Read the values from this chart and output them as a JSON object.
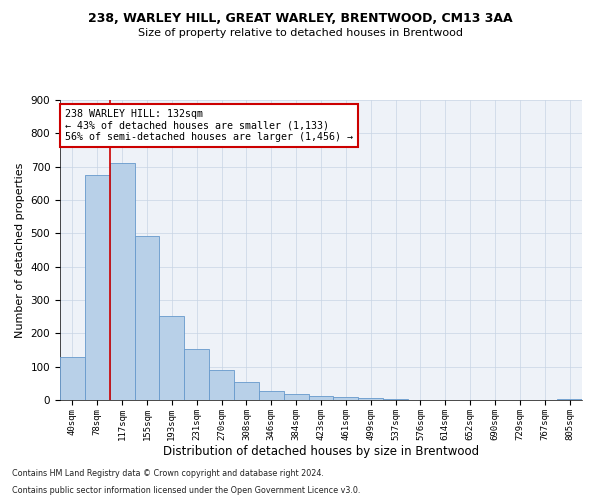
{
  "title1": "238, WARLEY HILL, GREAT WARLEY, BRENTWOOD, CM13 3AA",
  "title2": "Size of property relative to detached houses in Brentwood",
  "xlabel": "Distribution of detached houses by size in Brentwood",
  "ylabel": "Number of detached properties",
  "bar_color": "#b8d0e8",
  "bar_edge_color": "#6699cc",
  "bin_labels": [
    "40sqm",
    "78sqm",
    "117sqm",
    "155sqm",
    "193sqm",
    "231sqm",
    "270sqm",
    "308sqm",
    "346sqm",
    "384sqm",
    "423sqm",
    "461sqm",
    "499sqm",
    "537sqm",
    "576sqm",
    "614sqm",
    "652sqm",
    "690sqm",
    "729sqm",
    "767sqm",
    "805sqm"
  ],
  "bar_heights": [
    130,
    675,
    710,
    493,
    252,
    152,
    90,
    55,
    27,
    18,
    13,
    9,
    6,
    2,
    1,
    0,
    0,
    0,
    0,
    0,
    4
  ],
  "ylim": [
    0,
    900
  ],
  "yticks": [
    0,
    100,
    200,
    300,
    400,
    500,
    600,
    700,
    800,
    900
  ],
  "annotation_title": "238 WARLEY HILL: 132sqm",
  "annotation_line1": "← 43% of detached houses are smaller (1,133)",
  "annotation_line2": "56% of semi-detached houses are larger (1,456) →",
  "vline_color": "#cc0000",
  "annotation_box_facecolor": "#ffffff",
  "annotation_box_edgecolor": "#cc0000",
  "footnote1": "Contains HM Land Registry data © Crown copyright and database right 2024.",
  "footnote2": "Contains public sector information licensed under the Open Government Licence v3.0.",
  "background_color": "#eef2f8",
  "grid_color": "#c8d4e4"
}
